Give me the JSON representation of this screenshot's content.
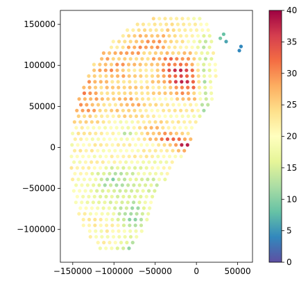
{
  "chart_data": {
    "type": "scatter",
    "title": "",
    "xlabel": "",
    "ylabel": "",
    "xlim": [
      -165000,
      68000
    ],
    "ylim": [
      -140000,
      167000
    ],
    "x_ticks": [
      -150000,
      -100000,
      -50000,
      0,
      50000
    ],
    "x_tick_labels": [
      "−150000",
      "−100000",
      "−50000",
      "0",
      "50000"
    ],
    "y_ticks": [
      -100000,
      -50000,
      0,
      50000,
      100000,
      150000
    ],
    "y_tick_labels": [
      "−100000",
      "−50000",
      "0",
      "50000",
      "100000",
      "150000"
    ],
    "grid": false,
    "colormap": "Spectral_r",
    "colormap_stops": [
      "#5e4fa2",
      "#3288bd",
      "#66c2a5",
      "#abdda4",
      "#e6f598",
      "#ffffbf",
      "#fee08b",
      "#fdae61",
      "#f46d43",
      "#d53e4f",
      "#9e0142"
    ],
    "colorbar": {
      "range": [
        0,
        40
      ],
      "ticks": [
        0,
        5,
        10,
        15,
        20,
        25,
        30,
        35,
        40
      ],
      "tick_labels": [
        "0",
        "5",
        "10",
        "15",
        "20",
        "25",
        "30",
        "35",
        "40"
      ],
      "placement": "right"
    },
    "grid_spacing": [
      7000,
      7000
    ],
    "region": {
      "y_top": 157000,
      "y_bottom": -125000,
      "left_edge": [
        [
          157000,
          -52000
        ],
        [
          150000,
          -75000
        ],
        [
          130000,
          -100000
        ],
        [
          100000,
          -125000
        ],
        [
          60000,
          -142000
        ],
        [
          20000,
          -150000
        ],
        [
          -20000,
          -152000
        ],
        [
          -60000,
          -148000
        ],
        [
          -90000,
          -140000
        ],
        [
          -110000,
          -128000
        ],
        [
          -125000,
          -115000
        ]
      ],
      "right_edge": [
        [
          157000,
          5000
        ],
        [
          150000,
          16000
        ],
        [
          140000,
          22000
        ],
        [
          120000,
          22000
        ],
        [
          90000,
          24000
        ],
        [
          70000,
          22000
        ],
        [
          55000,
          18000
        ],
        [
          40000,
          8000
        ],
        [
          20000,
          -2000
        ],
        [
          0,
          -10000
        ],
        [
          -30000,
          -33000
        ],
        [
          -60000,
          -48000
        ],
        [
          -90000,
          -60000
        ],
        [
          -110000,
          -70000
        ],
        [
          -125000,
          -80000
        ]
      ]
    },
    "extra_points": [
      {
        "x": 33000,
        "y": 138000,
        "v": 8
      },
      {
        "x": 29000,
        "y": 133000,
        "v": 9
      },
      {
        "x": 36000,
        "y": 129000,
        "v": 6
      },
      {
        "x": 54000,
        "y": 123000,
        "v": 4
      },
      {
        "x": 52000,
        "y": 118000,
        "v": 4
      }
    ],
    "hotspots": [
      {
        "x": -25000,
        "y": 95000,
        "v": 33,
        "rx": 25000,
        "ry": 22000
      },
      {
        "x": -10000,
        "y": 75000,
        "v": 30,
        "rx": 20000,
        "ry": 20000
      },
      {
        "x": -60000,
        "y": 130000,
        "v": 29,
        "rx": 28000,
        "ry": 20000
      },
      {
        "x": -135000,
        "y": 60000,
        "v": 30,
        "rx": 20000,
        "ry": 30000
      },
      {
        "x": -100000,
        "y": 100000,
        "v": 28,
        "rx": 28000,
        "ry": 25000
      },
      {
        "x": -80000,
        "y": 55000,
        "v": 27,
        "rx": 25000,
        "ry": 18000
      },
      {
        "x": -50000,
        "y": 20000,
        "v": 28,
        "rx": 20000,
        "ry": 10000
      },
      {
        "x": -25000,
        "y": 8000,
        "v": 34,
        "rx": 22000,
        "ry": 7000
      },
      {
        "x": -10000,
        "y": 0,
        "v": 36,
        "rx": 12000,
        "ry": 5000
      }
    ],
    "coldspots": [
      {
        "x": 10000,
        "y": 80000,
        "v": 10,
        "rx": 8000,
        "ry": 60000
      },
      {
        "x": -85000,
        "y": 20000,
        "v": 13,
        "rx": 12000,
        "ry": 8000
      },
      {
        "x": -95000,
        "y": -45000,
        "v": 11,
        "rx": 25000,
        "ry": 20000
      },
      {
        "x": -75000,
        "y": -80000,
        "v": 10,
        "rx": 18000,
        "ry": 20000
      },
      {
        "x": -75000,
        "y": -120000,
        "v": 12,
        "rx": 22000,
        "ry": 10000
      },
      {
        "x": -55000,
        "y": -40000,
        "v": 14,
        "rx": 15000,
        "ry": 15000
      }
    ],
    "base_value": 20.5
  }
}
